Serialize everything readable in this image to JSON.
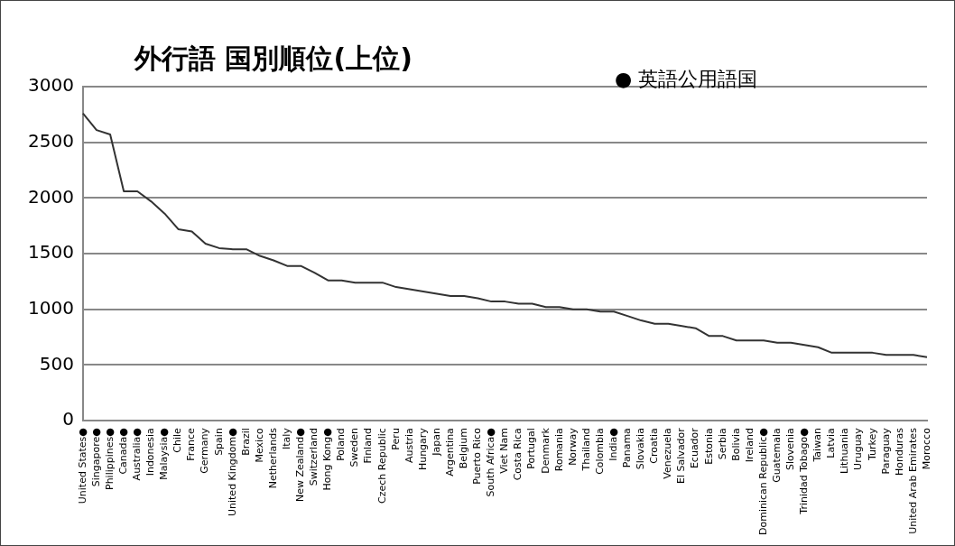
{
  "chart_data": {
    "type": "line",
    "title": "外行語 国別順位(上位)",
    "annotations": [
      "● 英語公用語国"
    ],
    "categories": [
      "United States●",
      "Singapore●",
      "Philippines●",
      "Canada●",
      "Australia●",
      "Indonesia",
      "Malaysia●",
      "Chile",
      "France",
      "Germany",
      "Spain",
      "United Kingdom●",
      "Brazil",
      "Mexico",
      "Netherlands",
      "Italy",
      "New Zealand●",
      "Switzerland",
      "Hong Kong●",
      "Poland",
      "Sweden",
      "Finland",
      "Czech Republic",
      "Peru",
      "Austria",
      "Hungary",
      "Japan",
      "Argentina",
      "Belgium",
      "Puerto Rico",
      "South Africa●",
      "Viet Nam",
      "Costa Rica",
      "Portugal",
      "Denmark",
      "Romania",
      "Norway",
      "Thailand",
      "Colombia",
      "India●",
      "Panama",
      "Slovakia",
      "Croatia",
      "Venezuela",
      "El Salvador",
      "Ecuador",
      "Estonia",
      "Serbia",
      "Bolivia",
      "Ireland",
      "Dominican Republic●",
      "Guatemala",
      "Slovenia",
      "Trinidad Tobago●",
      "Taiwan",
      "Latvia",
      "Lithuania",
      "Uruguay",
      "Turkey",
      "Paraguay",
      "Honduras",
      "United Arab Emirates",
      "Morocco"
    ],
    "series": [
      {
        "color": "#333333",
        "values": [
          2760,
          2610,
          2570,
          2060,
          2060,
          1970,
          1860,
          1720,
          1700,
          1590,
          1550,
          1540,
          1540,
          1480,
          1440,
          1390,
          1390,
          1330,
          1260,
          1260,
          1240,
          1240,
          1240,
          1200,
          1180,
          1160,
          1140,
          1120,
          1120,
          1100,
          1070,
          1070,
          1050,
          1050,
          1020,
          1020,
          1000,
          1000,
          980,
          980,
          940,
          900,
          870,
          870,
          850,
          830,
          760,
          760,
          720,
          720,
          720,
          700,
          700,
          680,
          660,
          610,
          610,
          610,
          610,
          590,
          590,
          590,
          570
        ]
      }
    ],
    "ylim": [
      0,
      3000
    ],
    "yticks": [
      0,
      500,
      1000,
      1500,
      2000,
      2500,
      3000
    ],
    "grid": "y",
    "legend": false,
    "marker": "none",
    "line_style": "solid"
  }
}
